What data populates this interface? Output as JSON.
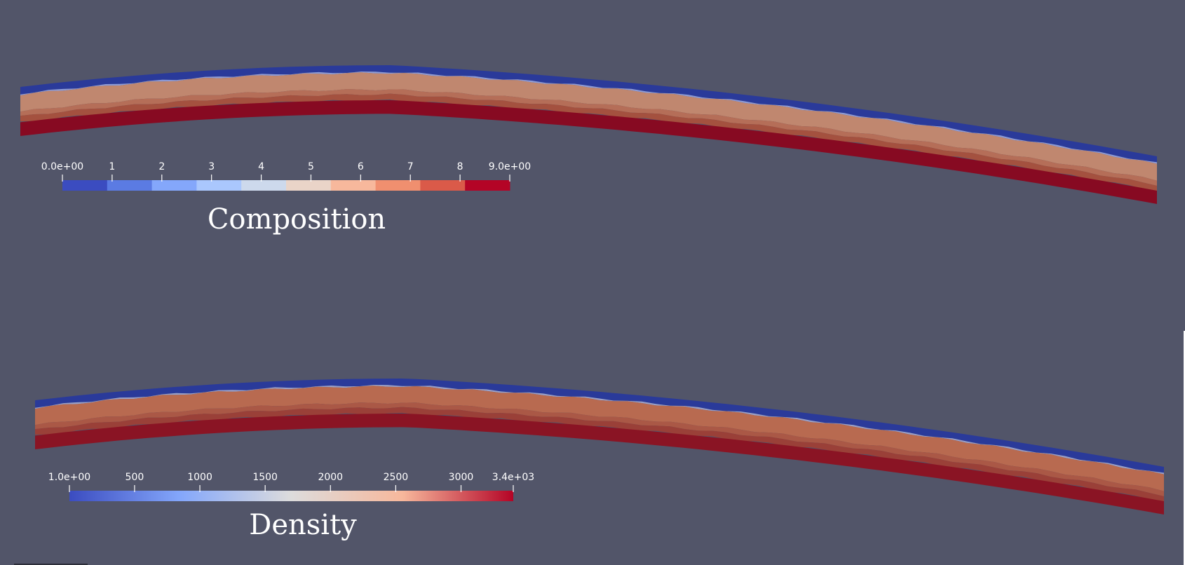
{
  "viewer": {
    "background": "#525569"
  },
  "panels": [
    {
      "name": "composition",
      "colorbar": {
        "title": "Composition",
        "type": "discrete",
        "range": [
          0,
          9
        ],
        "tick_labels": [
          "0.0e+00",
          "1",
          "2",
          "3",
          "4",
          "5",
          "6",
          "7",
          "8",
          "9.0e+00"
        ],
        "colors": [
          "#3b4cc0",
          "#5b7be3",
          "#84a7fb",
          "#aac7fd",
          "#cdd9ec",
          "#ead4c8",
          "#f7b89c",
          "#f08f6f",
          "#da5a49",
          "#b40426"
        ]
      },
      "slab_layers": [
        {
          "color": "#2a3a9a"
        },
        {
          "color": "#8e9bd6"
        },
        {
          "color": "#c0876f"
        },
        {
          "color": "#b56e58"
        },
        {
          "color": "#a4513f"
        },
        {
          "color": "#870a22"
        }
      ]
    },
    {
      "name": "density",
      "colorbar": {
        "title": "Density",
        "type": "continuous",
        "range": [
          1,
          3400
        ],
        "tick_labels": [
          "1.0e+00",
          "500",
          "1000",
          "1500",
          "2000",
          "2500",
          "3000",
          "3.4e+03"
        ],
        "tick_values": [
          1,
          500,
          1000,
          1500,
          2000,
          2500,
          3000,
          3400
        ],
        "colors": [
          "#3b4cc0",
          "#84a7fb",
          "#dddcdc",
          "#f7b89c",
          "#b40426"
        ]
      },
      "slab_layers": [
        {
          "color": "#2a3a9a"
        },
        {
          "color": "#9aa0c8"
        },
        {
          "color": "#b86a50"
        },
        {
          "color": "#aa5846"
        },
        {
          "color": "#9a4038"
        },
        {
          "color": "#8a1424"
        }
      ]
    }
  ]
}
